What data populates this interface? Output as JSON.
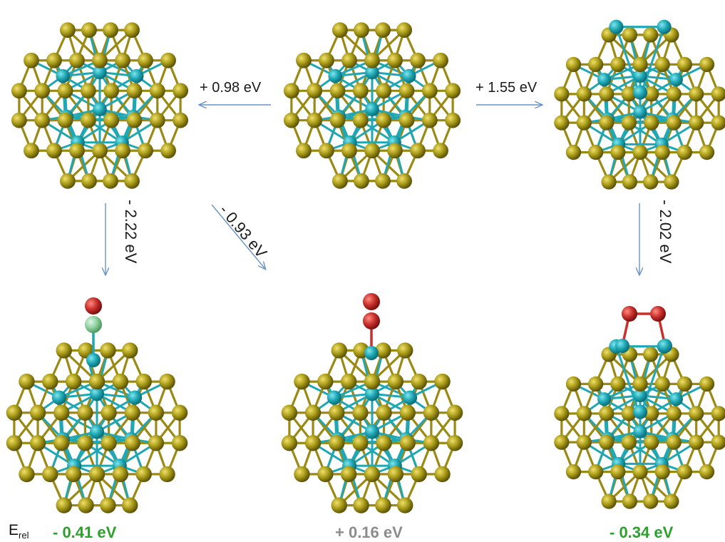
{
  "figure": {
    "colors": {
      "gold": "#9a8a14",
      "gold_highlight": "#e8dc60",
      "cyan": "#1fa7b4",
      "oxygen": "#c9302c",
      "halogen": "#8fd19e",
      "arrow": "#6a93c8",
      "negative_energy": "#2ca02c",
      "positive_energy": "#8c8c8c"
    },
    "icons": [
      "cluster-icon",
      "arrow-icon"
    ],
    "top_row": [
      {
        "name": "cluster-top-left",
        "variant": "core"
      },
      {
        "name": "cluster-top-center",
        "variant": "core"
      },
      {
        "name": "cluster-top-right",
        "variant": "surface-cyan"
      }
    ],
    "bottom_row": [
      {
        "name": "cluster-bottom-left",
        "adsorbate": "atop-two-atoms",
        "energy": "- 0.41 eV",
        "energy_color": "#2ca02c"
      },
      {
        "name": "cluster-bottom-center",
        "adsorbate": "atop-o2",
        "energy": "+ 0.16 eV",
        "energy_color": "#8c8c8c"
      },
      {
        "name": "cluster-bottom-right",
        "adsorbate": "bridge-o2",
        "energy": "- 0.34 eV",
        "energy_color": "#2ca02c"
      }
    ],
    "arrows": {
      "center_to_left": "+ 0.98 eV",
      "center_to_right": "+ 1.55 eV",
      "left_down": "- 2.22 eV",
      "diagonal_down": "- 0.93 eV",
      "right_down": "- 2.02 eV"
    },
    "erel_label": "E",
    "erel_sub": "rel"
  }
}
